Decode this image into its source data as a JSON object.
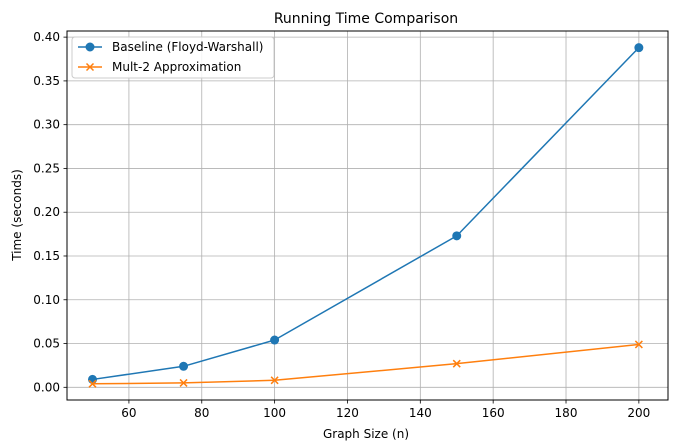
{
  "chart_data": {
    "type": "line",
    "title": "Running Time Comparison",
    "xlabel": "Graph Size (n)",
    "ylabel": "Time (seconds)",
    "xlim": [
      43,
      208
    ],
    "ylim": [
      -0.0145,
      0.407
    ],
    "xticks": [
      60,
      80,
      100,
      120,
      140,
      160,
      180,
      200
    ],
    "yticks": [
      0.0,
      0.05,
      0.1,
      0.15,
      0.2,
      0.25,
      0.3,
      0.35,
      0.4
    ],
    "xtick_labels": [
      "60",
      "80",
      "100",
      "120",
      "140",
      "160",
      "180",
      "200"
    ],
    "ytick_labels": [
      "0.00",
      "0.05",
      "0.10",
      "0.15",
      "0.20",
      "0.25",
      "0.30",
      "0.35",
      "0.40"
    ],
    "grid": true,
    "legend_position": "top-left",
    "series": [
      {
        "name": "Baseline (Floyd-Warshall)",
        "color": "#1f77b4",
        "marker": "circle",
        "x": [
          50,
          75,
          100,
          150,
          200
        ],
        "y": [
          0.009,
          0.024,
          0.054,
          0.173,
          0.388
        ]
      },
      {
        "name": "Mult-2 Approximation",
        "color": "#ff7f0e",
        "marker": "x",
        "x": [
          50,
          75,
          100,
          150,
          200
        ],
        "y": [
          0.004,
          0.005,
          0.008,
          0.027,
          0.049
        ]
      }
    ]
  }
}
